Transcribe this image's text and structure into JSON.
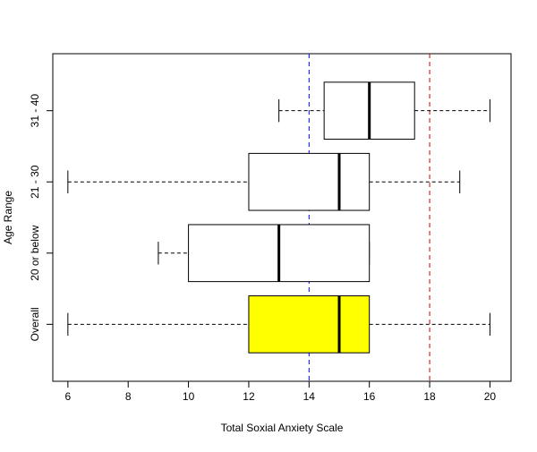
{
  "chart_data": {
    "type": "boxplot",
    "orientation": "horizontal",
    "title": "",
    "xlabel": "Total Soxial Anxiety Scale",
    "ylabel": "Age Range",
    "xlim": [
      5.5,
      20.7
    ],
    "x_ticks": [
      6,
      8,
      10,
      12,
      14,
      16,
      18,
      20
    ],
    "x_tick_labels": [
      "6",
      "8",
      "10",
      "12",
      "14",
      "16",
      "18",
      "20"
    ],
    "categories": [
      "Overall",
      "20 or below",
      "21 - 30",
      "31 - 40"
    ],
    "boxes": [
      {
        "category": "Overall",
        "min": 6,
        "q1": 12,
        "median": 15,
        "q3": 16,
        "max": 20,
        "fill": "#ffff00"
      },
      {
        "category": "20 or below",
        "min": 9,
        "q1": 10,
        "median": 13,
        "q3": 16,
        "max": 16,
        "fill": "#ffffff"
      },
      {
        "category": "21 - 30",
        "min": 6,
        "q1": 12,
        "median": 15,
        "q3": 16,
        "max": 19,
        "fill": "#ffffff"
      },
      {
        "category": "31 - 40",
        "min": 13,
        "q1": 14.5,
        "median": 16,
        "q3": 17.5,
        "max": 20,
        "fill": "#ffffff"
      }
    ],
    "reference_lines": [
      {
        "x": 14,
        "color": "#0000ff",
        "style": "dashed"
      },
      {
        "x": 18,
        "color": "#cc0000",
        "style": "dashed"
      }
    ],
    "grid": false,
    "legend": "none"
  }
}
